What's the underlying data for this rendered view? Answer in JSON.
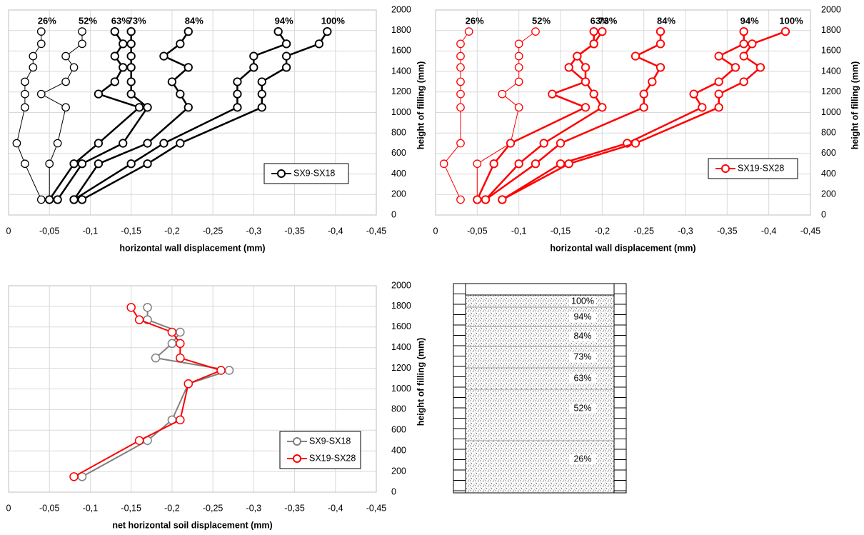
{
  "chart_data": [
    {
      "type": "line",
      "x_label": "horizontal wall displacement (mm)",
      "y_label": "height of filling (mm)",
      "legend": "SX9-SX18",
      "color": "#000000",
      "y": [
        150,
        500,
        700,
        1050,
        1180,
        1300,
        1440,
        1550,
        1670,
        1790
      ],
      "series": [
        {
          "label": "26%",
          "width": 1,
          "x": [
            -0.04,
            -0.02,
            -0.01,
            -0.02,
            -0.02,
            -0.02,
            -0.03,
            -0.03,
            -0.04,
            -0.04
          ]
        },
        {
          "label": "52%",
          "width": 1,
          "x": [
            -0.05,
            -0.05,
            -0.06,
            -0.07,
            -0.04,
            -0.07,
            -0.08,
            -0.07,
            -0.09,
            -0.09
          ]
        },
        {
          "label": "63%",
          "width": 2.5,
          "x": [
            -0.05,
            -0.08,
            -0.11,
            -0.16,
            -0.11,
            -0.13,
            -0.14,
            -0.13,
            -0.14,
            -0.13
          ]
        },
        {
          "label": "73%",
          "width": 2.5,
          "x": [
            -0.06,
            -0.09,
            -0.14,
            -0.17,
            -0.15,
            -0.15,
            -0.15,
            -0.15,
            -0.15,
            -0.15
          ]
        },
        {
          "label": "84%",
          "width": 2.5,
          "x": [
            -0.08,
            -0.11,
            -0.17,
            -0.22,
            -0.21,
            -0.2,
            -0.22,
            -0.19,
            -0.21,
            -0.22
          ]
        },
        {
          "label": "94%",
          "width": 2.5,
          "x": [
            -0.08,
            -0.15,
            -0.19,
            -0.28,
            -0.28,
            -0.28,
            -0.3,
            -0.3,
            -0.34,
            -0.33
          ]
        },
        {
          "label": "100%",
          "width": 2.5,
          "x": [
            -0.09,
            -0.17,
            -0.21,
            -0.31,
            -0.31,
            -0.31,
            -0.34,
            -0.34,
            -0.38,
            -0.39
          ]
        }
      ],
      "xlim": [
        0,
        -0.45
      ],
      "ylim": [
        0,
        2000
      ],
      "xticks": [
        0,
        {
          "value": -0.05,
          "label": "-0,05"
        },
        {
          "value": -0.1,
          "label": "-0,1"
        },
        {
          "value": -0.15,
          "label": "-0,15"
        },
        {
          "value": -0.2,
          "label": "-0,2"
        },
        {
          "value": -0.25,
          "label": "-0,25"
        },
        {
          "value": -0.3,
          "label": "-0,3"
        },
        {
          "value": -0.35,
          "label": "-0,35"
        },
        {
          "value": -0.4,
          "label": "-0,4"
        },
        {
          "value": -0.45,
          "label": "-0,45"
        }
      ],
      "yticks": [
        0,
        200,
        400,
        600,
        800,
        1000,
        1200,
        1400,
        1600,
        1800,
        2000
      ],
      "grid": true
    },
    {
      "type": "line",
      "x_label": "horizontal wall displacement (mm)",
      "y_label": "height of filling (mm)",
      "legend": "SX19-SX28",
      "color": "#ff0000",
      "y": [
        150,
        500,
        700,
        1050,
        1180,
        1300,
        1440,
        1550,
        1670,
        1790
      ],
      "series": [
        {
          "label": "26%",
          "width": 1,
          "x": [
            -0.03,
            -0.01,
            -0.03,
            -0.03,
            -0.03,
            -0.03,
            -0.03,
            -0.03,
            -0.03,
            -0.04
          ]
        },
        {
          "label": "52%",
          "width": 1,
          "x": [
            -0.05,
            -0.05,
            -0.09,
            -0.1,
            -0.08,
            -0.1,
            -0.1,
            -0.1,
            -0.1,
            -0.12
          ]
        },
        {
          "label": "63%",
          "width": 2.5,
          "x": [
            -0.05,
            -0.07,
            -0.09,
            -0.18,
            -0.14,
            -0.18,
            -0.16,
            -0.17,
            -0.19,
            -0.19
          ]
        },
        {
          "label": "73%",
          "width": 2.5,
          "x": [
            -0.06,
            -0.1,
            -0.13,
            -0.2,
            -0.19,
            -0.18,
            -0.18,
            -0.17,
            -0.19,
            -0.2
          ]
        },
        {
          "label": "84%",
          "width": 2.5,
          "x": [
            -0.06,
            -0.12,
            -0.15,
            -0.25,
            -0.25,
            -0.26,
            -0.27,
            -0.24,
            -0.27,
            -0.27
          ]
        },
        {
          "label": "94%",
          "width": 2.5,
          "x": [
            -0.08,
            -0.15,
            -0.23,
            -0.32,
            -0.31,
            -0.34,
            -0.36,
            -0.34,
            -0.37,
            -0.37
          ]
        },
        {
          "label": "100%",
          "width": 2.5,
          "x": [
            -0.08,
            -0.16,
            -0.24,
            -0.34,
            -0.34,
            -0.37,
            -0.39,
            -0.37,
            -0.38,
            -0.42
          ]
        }
      ],
      "xlim": [
        0,
        -0.45
      ],
      "ylim": [
        0,
        2000
      ],
      "xticks": [
        0,
        {
          "value": -0.05,
          "label": "-0,05"
        },
        {
          "value": -0.1,
          "label": "-0,1"
        },
        {
          "value": -0.15,
          "label": "-0,15"
        },
        {
          "value": -0.2,
          "label": "-0,2"
        },
        {
          "value": -0.25,
          "label": "-0,25"
        },
        {
          "value": -0.3,
          "label": "-0,3"
        },
        {
          "value": -0.35,
          "label": "-0,35"
        },
        {
          "value": -0.4,
          "label": "-0,4"
        },
        {
          "value": -0.45,
          "label": "-0,45"
        }
      ],
      "yticks": [
        0,
        200,
        400,
        600,
        800,
        1000,
        1200,
        1400,
        1600,
        1800,
        2000
      ],
      "grid": true
    },
    {
      "type": "line",
      "x_label": "net horizontal soil displacement (mm)",
      "y_label": "height of filling (mm)",
      "y": [
        150,
        500,
        700,
        1050,
        1180,
        1300,
        1440,
        1550,
        1670,
        1790
      ],
      "series": [
        {
          "name": "SX9-SX18",
          "color": "#808080",
          "x": [
            -0.09,
            -0.17,
            -0.2,
            -0.22,
            -0.27,
            -0.18,
            -0.2,
            -0.21,
            -0.17,
            -0.17
          ]
        },
        {
          "name": "SX19-SX28",
          "color": "#ff0000",
          "x": [
            -0.08,
            -0.16,
            -0.21,
            -0.22,
            -0.26,
            -0.21,
            -0.21,
            -0.2,
            -0.16,
            -0.15
          ]
        }
      ],
      "xlim": [
        0,
        -0.45
      ],
      "ylim": [
        0,
        2000
      ],
      "xticks": [
        0,
        {
          "value": -0.05,
          "label": "-0,05"
        },
        {
          "value": -0.1,
          "label": "-0,1"
        },
        {
          "value": -0.15,
          "label": "-0,15"
        },
        {
          "value": -0.2,
          "label": "-0,2"
        },
        {
          "value": -0.25,
          "label": "-0,25"
        },
        {
          "value": -0.3,
          "label": "-0,3"
        },
        {
          "value": -0.35,
          "label": "-0,35"
        },
        {
          "value": -0.4,
          "label": "-0,4"
        },
        {
          "value": -0.45,
          "label": "-0,45"
        }
      ],
      "yticks": [
        0,
        200,
        400,
        600,
        800,
        1000,
        1200,
        1400,
        1600,
        1800,
        2000
      ],
      "grid": true
    }
  ],
  "diagram": {
    "layers": [
      "100%",
      "94%",
      "84%",
      "73%",
      "63%",
      "52%",
      "26%"
    ]
  }
}
